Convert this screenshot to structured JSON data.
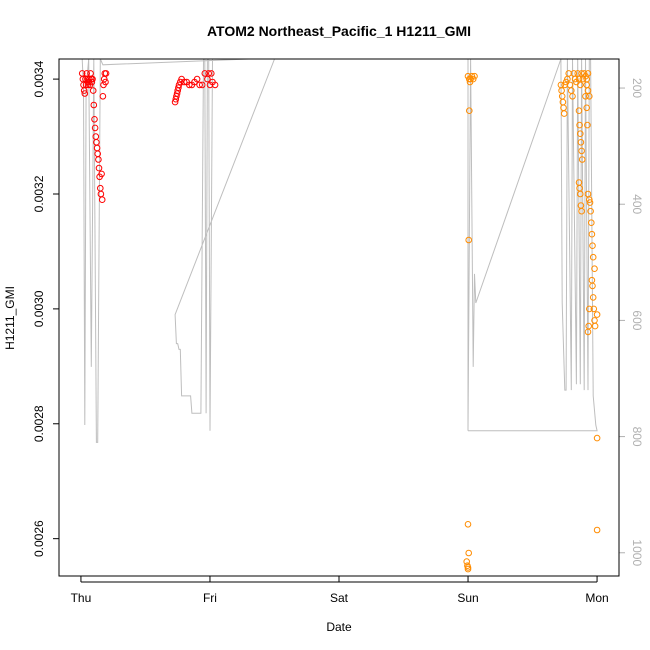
{
  "chart_data": {
    "type": "scatter",
    "title": "ATOM2 Northeast_Pacific_1 H1211_GMI",
    "xlabel": "Date",
    "ylabel": "H1211_GMI",
    "x_ticks": [
      "Thu",
      "Fri",
      "Sat",
      "Sun",
      "Mon"
    ],
    "x_range_days": [
      -0.17,
      4.17
    ],
    "ylim": [
      0.002535,
      0.003435
    ],
    "y_ticks": [
      "0.0026",
      "0.0028",
      "0.0030",
      "0.0032",
      "0.0034"
    ],
    "y_tick_values": [
      0.0026,
      0.0028,
      0.003,
      0.0032,
      0.0034
    ],
    "right_axis": {
      "ylim": [
        1040,
        150
      ],
      "ticks": [
        "200",
        "400",
        "600",
        "800",
        "1000"
      ],
      "tick_values": [
        200,
        400,
        600,
        800,
        1000
      ]
    },
    "colors": {
      "red": "#ff0000",
      "orange": "#ff8c00",
      "grey": "#bebebe"
    },
    "series": [
      {
        "color": "red",
        "points": [
          [
            0.01,
            0.00341
          ],
          [
            0.015,
            0.0034
          ],
          [
            0.02,
            0.00339
          ],
          [
            0.025,
            0.00338
          ],
          [
            0.03,
            0.003375
          ],
          [
            0.035,
            0.0034
          ],
          [
            0.04,
            0.00339
          ],
          [
            0.045,
            0.00341
          ],
          [
            0.05,
            0.0034
          ],
          [
            0.055,
            0.00339
          ],
          [
            0.06,
            0.003395
          ],
          [
            0.065,
            0.0034
          ],
          [
            0.07,
            0.00339
          ],
          [
            0.075,
            0.00341
          ],
          [
            0.08,
            0.0034
          ],
          [
            0.085,
            0.003395
          ],
          [
            0.09,
            0.0034
          ],
          [
            0.095,
            0.00338
          ],
          [
            0.1,
            0.003355
          ],
          [
            0.105,
            0.00333
          ],
          [
            0.11,
            0.003315
          ],
          [
            0.115,
            0.0033
          ],
          [
            0.12,
            0.00329
          ],
          [
            0.125,
            0.00328
          ],
          [
            0.13,
            0.00327
          ],
          [
            0.135,
            0.00326
          ],
          [
            0.14,
            0.003245
          ],
          [
            0.145,
            0.00323
          ],
          [
            0.15,
            0.00321
          ],
          [
            0.155,
            0.0032
          ],
          [
            0.16,
            0.003235
          ],
          [
            0.165,
            0.00319
          ],
          [
            0.17,
            0.00337
          ],
          [
            0.175,
            0.00339
          ],
          [
            0.18,
            0.0034
          ],
          [
            0.185,
            0.00341
          ],
          [
            0.19,
            0.003395
          ],
          [
            0.195,
            0.00341
          ],
          [
            0.73,
            0.00336
          ],
          [
            0.735,
            0.003365
          ],
          [
            0.74,
            0.00337
          ],
          [
            0.745,
            0.003375
          ],
          [
            0.75,
            0.00338
          ],
          [
            0.755,
            0.003385
          ],
          [
            0.76,
            0.00339
          ],
          [
            0.77,
            0.003395
          ],
          [
            0.78,
            0.0034
          ],
          [
            0.8,
            0.003395
          ],
          [
            0.82,
            0.003395
          ],
          [
            0.84,
            0.00339
          ],
          [
            0.86,
            0.00339
          ],
          [
            0.88,
            0.003395
          ],
          [
            0.9,
            0.0034
          ],
          [
            0.92,
            0.00339
          ],
          [
            0.94,
            0.00339
          ],
          [
            0.96,
            0.00341
          ],
          [
            0.98,
            0.0034
          ],
          [
            1.0,
            0.00339
          ],
          [
            1.02,
            0.003395
          ],
          [
            1.04,
            0.00339
          ],
          [
            0.99,
            0.00341
          ],
          [
            1.01,
            0.00341
          ]
        ]
      },
      {
        "color": "orange",
        "points": [
          [
            3.0,
            0.003405
          ],
          [
            3.01,
            0.0034
          ],
          [
            3.02,
            0.0034
          ],
          [
            3.03,
            0.003405
          ],
          [
            3.04,
            0.0034
          ],
          [
            3.05,
            0.003405
          ],
          [
            3.015,
            0.003395
          ],
          [
            3.01,
            0.003345
          ],
          [
            3.005,
            0.00312
          ],
          [
            3.0,
            0.002625
          ],
          [
            2.99,
            0.00256
          ],
          [
            2.995,
            0.002553
          ],
          [
            3.0,
            0.002547
          ],
          [
            3.005,
            0.002575
          ],
          [
            3.0,
            0.00255
          ],
          [
            3.72,
            0.00339
          ],
          [
            3.725,
            0.00338
          ],
          [
            3.73,
            0.00337
          ],
          [
            3.735,
            0.00336
          ],
          [
            3.74,
            0.00335
          ],
          [
            3.745,
            0.00334
          ],
          [
            3.75,
            0.00339
          ],
          [
            3.76,
            0.003395
          ],
          [
            3.77,
            0.0034
          ],
          [
            3.78,
            0.00341
          ],
          [
            3.79,
            0.00339
          ],
          [
            3.8,
            0.00338
          ],
          [
            3.81,
            0.00337
          ],
          [
            3.82,
            0.00341
          ],
          [
            3.83,
            0.0034
          ],
          [
            3.84,
            0.003395
          ],
          [
            3.85,
            0.00341
          ],
          [
            3.86,
            0.0034
          ],
          [
            3.87,
            0.00339
          ],
          [
            3.88,
            0.00341
          ],
          [
            3.89,
            0.0034
          ],
          [
            3.9,
            0.00341
          ],
          [
            3.91,
            0.003405
          ],
          [
            3.92,
            0.0034
          ],
          [
            3.93,
            0.00341
          ],
          [
            3.86,
            0.003345
          ],
          [
            3.865,
            0.00332
          ],
          [
            3.87,
            0.003305
          ],
          [
            3.875,
            0.00329
          ],
          [
            3.88,
            0.003275
          ],
          [
            3.885,
            0.00326
          ],
          [
            3.86,
            0.00322
          ],
          [
            3.865,
            0.00321
          ],
          [
            3.87,
            0.0032
          ],
          [
            3.875,
            0.00318
          ],
          [
            3.88,
            0.00317
          ],
          [
            3.91,
            0.00337
          ],
          [
            3.92,
            0.00335
          ],
          [
            3.925,
            0.00332
          ],
          [
            3.93,
            0.0032
          ],
          [
            3.94,
            0.00319
          ],
          [
            3.945,
            0.003185
          ],
          [
            3.95,
            0.00317
          ],
          [
            3.955,
            0.00315
          ],
          [
            3.96,
            0.00313
          ],
          [
            3.965,
            0.00311
          ],
          [
            3.97,
            0.00309
          ],
          [
            3.98,
            0.00307
          ],
          [
            3.96,
            0.00305
          ],
          [
            3.965,
            0.00304
          ],
          [
            3.97,
            0.00302
          ],
          [
            3.975,
            0.003
          ],
          [
            3.98,
            0.00298
          ],
          [
            3.985,
            0.00297
          ],
          [
            3.93,
            0.00296
          ],
          [
            3.935,
            0.00297
          ],
          [
            3.94,
            0.003
          ],
          [
            4.0,
            0.00299
          ],
          [
            4.0,
            0.002775
          ],
          [
            4.0,
            0.002615
          ],
          [
            3.92,
            0.00339
          ],
          [
            3.93,
            0.00338
          ],
          [
            3.94,
            0.00337
          ]
        ]
      }
    ],
    "grey_line_right_axis": [
      [
        0.01,
        150
      ],
      [
        0.02,
        200
      ],
      [
        0.03,
        780
      ],
      [
        0.04,
        200
      ],
      [
        0.06,
        150
      ],
      [
        0.08,
        680
      ],
      [
        0.1,
        150
      ],
      [
        0.12,
        810
      ],
      [
        0.13,
        810
      ],
      [
        0.15,
        150
      ],
      [
        0.17,
        160
      ],
      [
        1.3,
        150
      ],
      [
        1.5,
        150
      ],
      [
        0.73,
        590
      ],
      [
        0.74,
        640
      ],
      [
        0.75,
        640
      ],
      [
        0.76,
        650
      ],
      [
        0.77,
        650
      ],
      [
        0.78,
        730
      ],
      [
        0.85,
        730
      ],
      [
        0.86,
        760
      ],
      [
        0.93,
        760
      ],
      [
        0.95,
        150
      ],
      [
        0.96,
        150
      ],
      [
        0.97,
        760
      ],
      [
        0.98,
        150
      ],
      [
        0.99,
        150
      ],
      [
        1.0,
        790
      ],
      [
        1.02,
        150
      ],
      [
        3.0,
        150
      ],
      [
        3.0,
        790
      ],
      [
        3.02,
        150
      ],
      [
        3.04,
        680
      ],
      [
        3.05,
        520
      ],
      [
        3.06,
        570
      ],
      [
        3.72,
        150
      ],
      [
        3.73,
        570
      ],
      [
        3.75,
        720
      ],
      [
        3.76,
        720
      ],
      [
        3.77,
        150
      ],
      [
        3.8,
        720
      ],
      [
        3.81,
        150
      ],
      [
        3.84,
        710
      ],
      [
        3.85,
        150
      ],
      [
        3.87,
        710
      ],
      [
        3.88,
        150
      ],
      [
        3.9,
        720
      ],
      [
        3.91,
        150
      ],
      [
        3.93,
        720
      ],
      [
        3.94,
        150
      ],
      [
        3.95,
        150
      ],
      [
        3.97,
        730
      ],
      [
        3.99,
        780
      ],
      [
        4.0,
        790
      ],
      [
        3.0,
        790
      ]
    ]
  }
}
